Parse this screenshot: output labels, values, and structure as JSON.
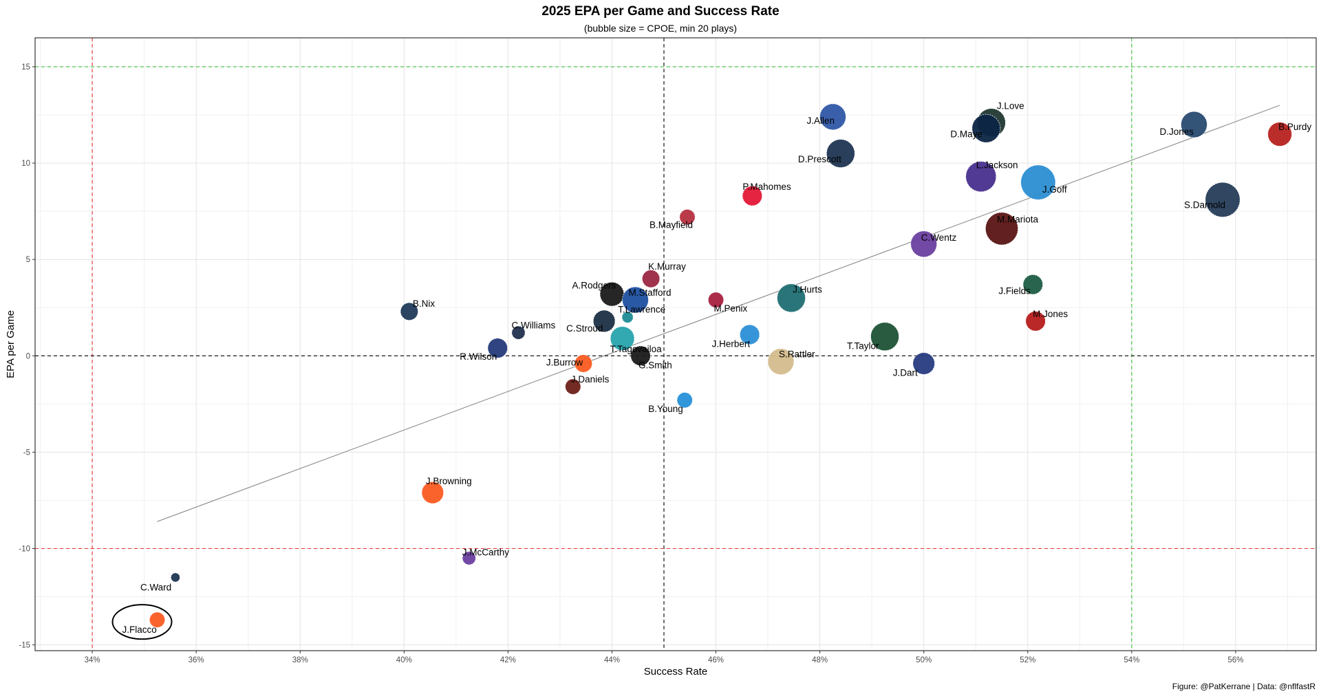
{
  "chart_data": {
    "type": "scatter",
    "title": "2025 EPA per Game and Success Rate",
    "subtitle": "(bubble size = CPOE, min 20 plays)",
    "xlabel": "Success Rate",
    "ylabel": "EPA per Game",
    "caption": "Figure: @PatKerrane | Data: @nflfastR",
    "xlim": [
      0.329,
      0.5755
    ],
    "ylim": [
      -15.3,
      16.5
    ],
    "x_ticks": [
      0.34,
      0.36,
      0.38,
      0.4,
      0.42,
      0.44,
      0.46,
      0.48,
      0.5,
      0.52,
      0.54,
      0.56
    ],
    "x_tick_labels": [
      "34%",
      "36%",
      "38%",
      "40%",
      "42%",
      "44%",
      "46%",
      "48%",
      "50%",
      "52%",
      "54%",
      "56%"
    ],
    "y_ticks": [
      -15,
      -10,
      -5,
      0,
      5,
      10,
      15
    ],
    "y_tick_labels": [
      "-15",
      "-10",
      "-5",
      "0",
      "5",
      "10",
      "15"
    ],
    "grid": true,
    "reference_lines": [
      {
        "axis": "x",
        "value": 0.34,
        "color": "#e8322f",
        "style": "dashed"
      },
      {
        "axis": "x",
        "value": 0.45,
        "color": "#000000",
        "style": "dashed"
      },
      {
        "axis": "x",
        "value": 0.54,
        "color": "#39c239",
        "style": "dashed"
      },
      {
        "axis": "y",
        "value": -10,
        "color": "#e8322f",
        "style": "dashed"
      },
      {
        "axis": "y",
        "value": 0,
        "color": "#000000",
        "style": "dashed"
      },
      {
        "axis": "y",
        "value": 15,
        "color": "#39c239",
        "style": "dashed"
      }
    ],
    "trend_line": {
      "x": [
        0.3525,
        0.5685
      ],
      "y": [
        -8.6,
        13.0
      ],
      "color": "#7f7f7f"
    },
    "highlight": {
      "label": "J.Flacco",
      "shape": "ellipse"
    },
    "points": [
      {
        "label": "J.Allen",
        "x": 0.4825,
        "y": 12.4,
        "size": 9,
        "color": "#2f57a6"
      },
      {
        "label": "J.Love",
        "x": 0.513,
        "y": 12.1,
        "size": 10,
        "color": "#203731"
      },
      {
        "label": "D.Maye",
        "x": 0.512,
        "y": 11.8,
        "size": 10,
        "color": "#0b2545"
      },
      {
        "label": "D.Jones",
        "x": 0.552,
        "y": 12.0,
        "size": 9,
        "color": "#284a70"
      },
      {
        "label": "B.Purdy",
        "x": 0.5685,
        "y": 11.5,
        "size": 8,
        "color": "#b7221f"
      },
      {
        "label": "D.Prescott",
        "x": 0.484,
        "y": 10.5,
        "size": 10,
        "color": "#1f3552"
      },
      {
        "label": "L.Jackson",
        "x": 0.511,
        "y": 9.3,
        "size": 11,
        "color": "#482f8d"
      },
      {
        "label": "J.Goff",
        "x": 0.522,
        "y": 9.0,
        "size": 13,
        "color": "#2b8ed2"
      },
      {
        "label": "S.Darnold",
        "x": 0.5575,
        "y": 8.1,
        "size": 13,
        "color": "#253c59"
      },
      {
        "label": "P.Mahomes",
        "x": 0.467,
        "y": 8.3,
        "size": 6,
        "color": "#e31837"
      },
      {
        "label": "B.Mayfield",
        "x": 0.4545,
        "y": 7.2,
        "size": 4,
        "color": "#b5303f"
      },
      {
        "label": "M.Mariota",
        "x": 0.515,
        "y": 6.6,
        "size": 12,
        "color": "#5a1414"
      },
      {
        "label": "C.Wentz",
        "x": 0.5,
        "y": 5.8,
        "size": 9,
        "color": "#6a3fa0"
      },
      {
        "label": "K.Murray",
        "x": 0.4475,
        "y": 4.0,
        "size": 5,
        "color": "#9b2743"
      },
      {
        "label": "J.Fields",
        "x": 0.521,
        "y": 3.7,
        "size": 6,
        "color": "#1e5d44"
      },
      {
        "label": "A.Rodgers",
        "x": 0.44,
        "y": 3.2,
        "size": 8,
        "color": "#1a1a1a"
      },
      {
        "label": "M.Stafford",
        "x": 0.4445,
        "y": 2.9,
        "size": 9,
        "color": "#1e50a0"
      },
      {
        "label": "J.Hurts",
        "x": 0.4745,
        "y": 3.0,
        "size": 10,
        "color": "#1f6e72"
      },
      {
        "label": "B.Nix",
        "x": 0.401,
        "y": 2.3,
        "size": 5,
        "color": "#1f3a5a"
      },
      {
        "label": "T.Lawrence",
        "x": 0.443,
        "y": 2.0,
        "size": 2,
        "color": "#1e8b95"
      },
      {
        "label": "M.Penix",
        "x": 0.46,
        "y": 2.9,
        "size": 4,
        "color": "#a8203f"
      },
      {
        "label": "M.Jones",
        "x": 0.5215,
        "y": 1.8,
        "size": 6,
        "color": "#b71c1c"
      },
      {
        "label": "C.Stroud",
        "x": 0.4385,
        "y": 1.8,
        "size": 7,
        "color": "#1c2f44"
      },
      {
        "label": "C.Williams",
        "x": 0.422,
        "y": 1.2,
        "size": 3,
        "color": "#22314d"
      },
      {
        "label": "J.Herbert",
        "x": 0.4665,
        "y": 1.1,
        "size": 6,
        "color": "#2b8fd6"
      },
      {
        "label": "T.Taylor",
        "x": 0.4925,
        "y": 1.0,
        "size": 10,
        "color": "#1c5236"
      },
      {
        "label": "T.Tagovailoa",
        "x": 0.442,
        "y": 0.9,
        "size": 8,
        "color": "#27a3ad"
      },
      {
        "label": "R.Wilson",
        "x": 0.418,
        "y": 0.4,
        "size": 6,
        "color": "#243a7a"
      },
      {
        "label": "G.Smith",
        "x": 0.4455,
        "y": 0.0,
        "size": 6,
        "color": "#1a1a1a"
      },
      {
        "label": "S.Rattler",
        "x": 0.4725,
        "y": -0.3,
        "size": 9,
        "color": "#d3bc8d"
      },
      {
        "label": "J.Burrow",
        "x": 0.4345,
        "y": -0.4,
        "size": 5,
        "color": "#fb5b21"
      },
      {
        "label": "J.Dart",
        "x": 0.5,
        "y": -0.4,
        "size": 7,
        "color": "#273b80"
      },
      {
        "label": "J.Daniels",
        "x": 0.4325,
        "y": -1.6,
        "size": 4,
        "color": "#6b2018"
      },
      {
        "label": "B.Young",
        "x": 0.454,
        "y": -2.3,
        "size": 4,
        "color": "#2790d8"
      },
      {
        "label": "J.Browning",
        "x": 0.4055,
        "y": -7.1,
        "size": 7,
        "color": "#fb5b21"
      },
      {
        "label": "J.McCarthy",
        "x": 0.4125,
        "y": -10.5,
        "size": 3,
        "color": "#6a3fa0"
      },
      {
        "label": "C.Ward",
        "x": 0.356,
        "y": -11.5,
        "size": 1,
        "color": "#1f3552"
      },
      {
        "label": "J.Flacco",
        "x": 0.3525,
        "y": -13.7,
        "size": 4,
        "color": "#fb5b21"
      }
    ]
  }
}
